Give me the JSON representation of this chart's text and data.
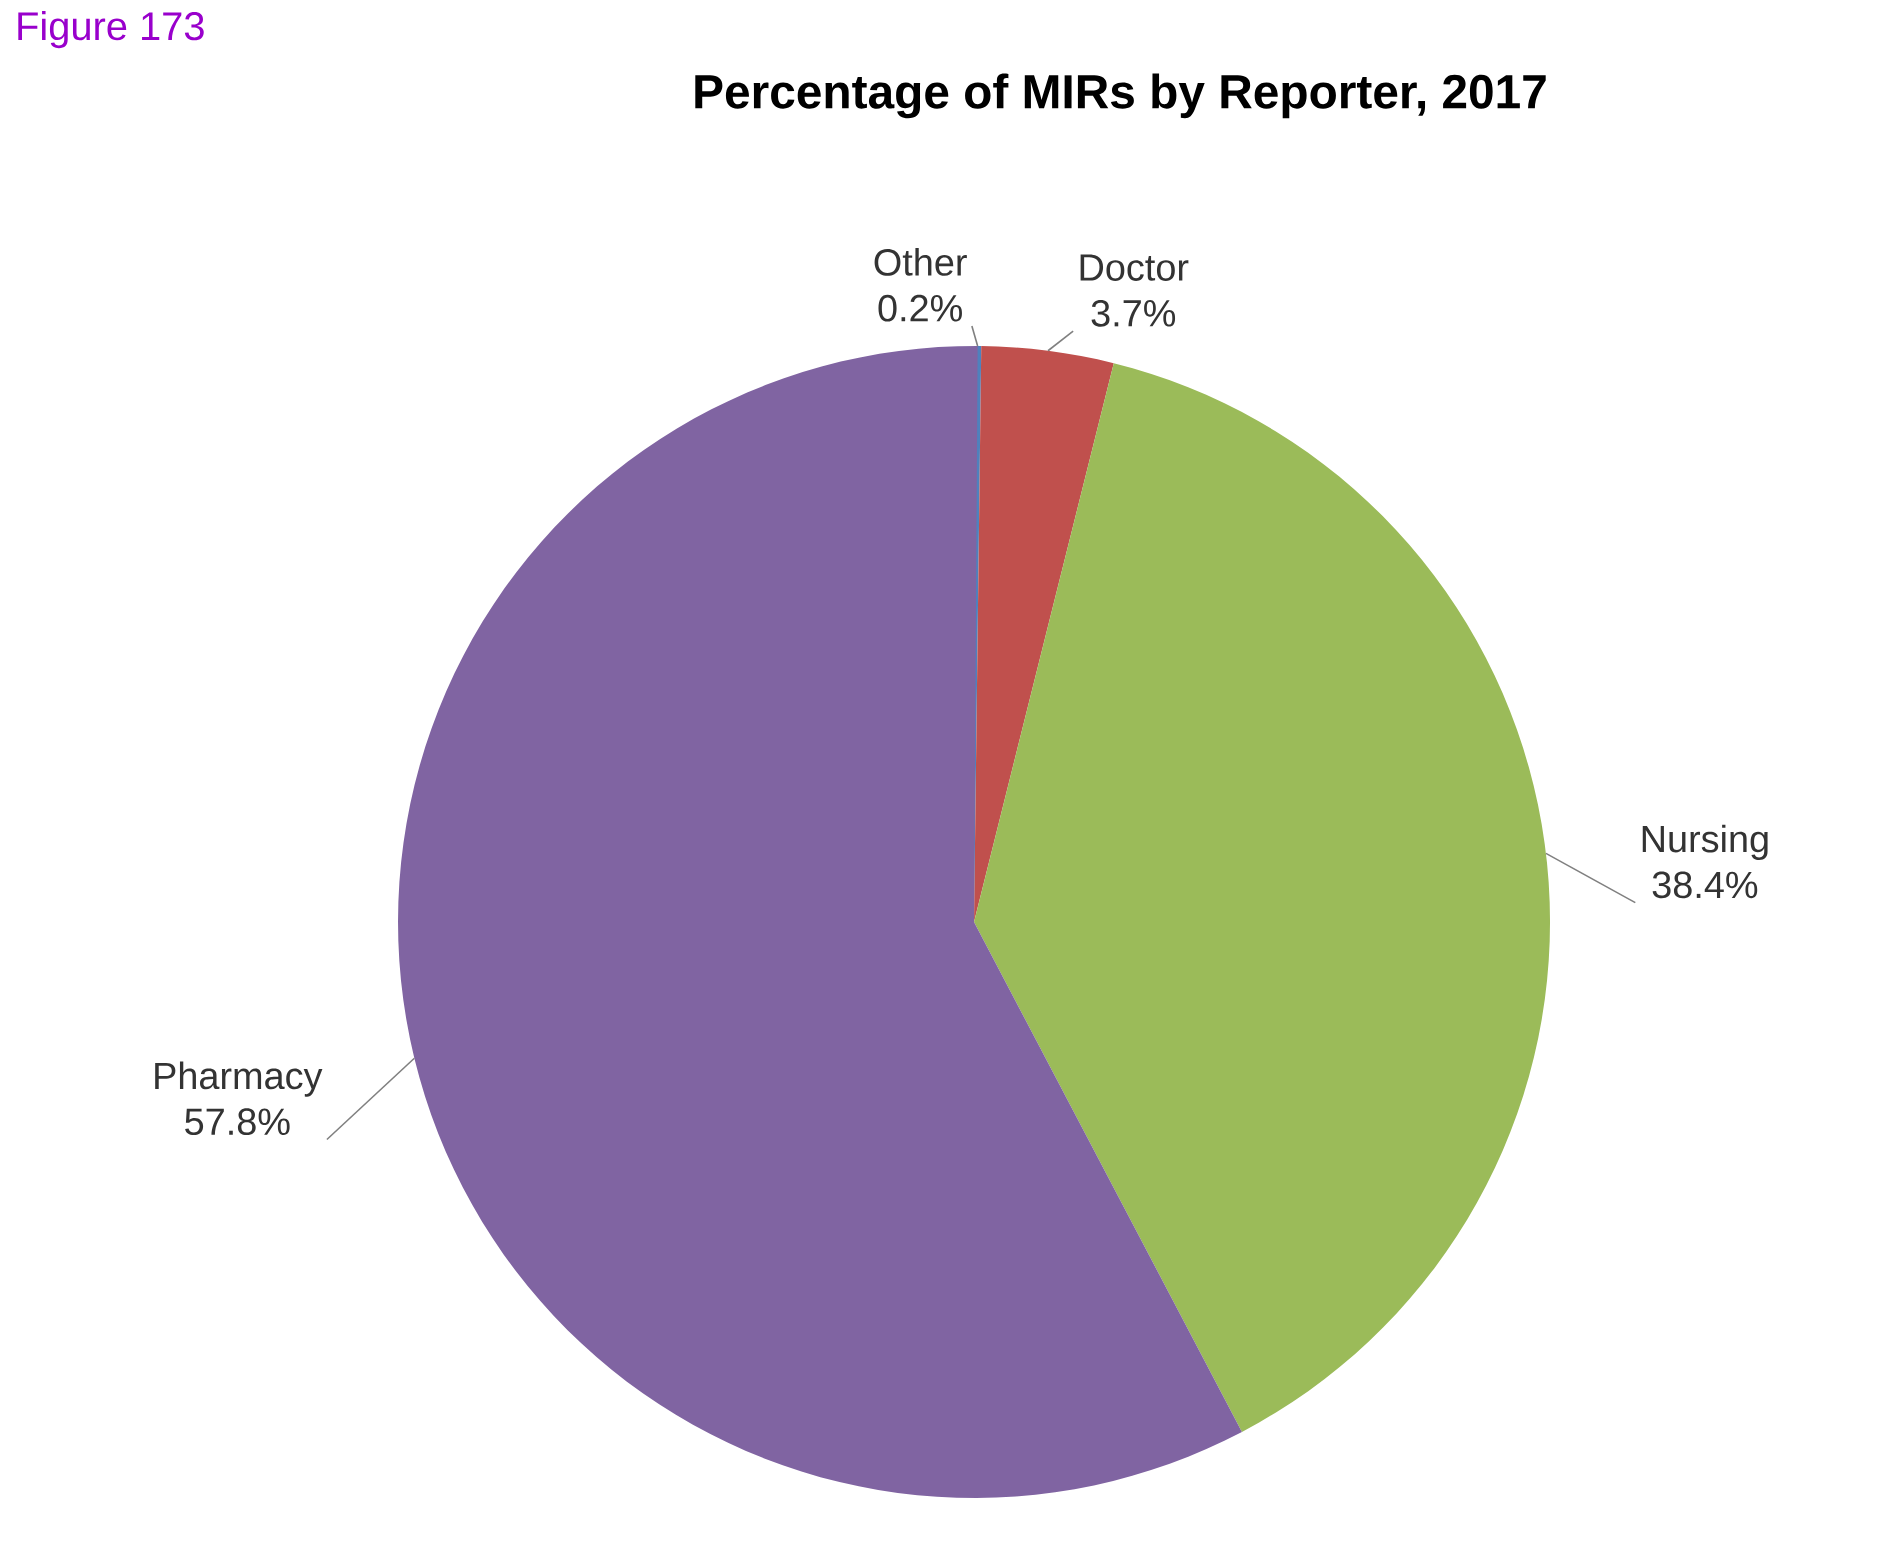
{
  "chart_data": {
    "type": "pie",
    "title": "Percentage of MIRs by Reporter, 2017",
    "categories": [
      "Other",
      "Doctor",
      "Nursing",
      "Pharmacy"
    ],
    "values": [
      0.2,
      3.7,
      38.4,
      57.8
    ],
    "value_labels": [
      "0.2%",
      "3.7%",
      "38.4%",
      "57.8%"
    ],
    "colors": [
      "#4f81bd",
      "#c0504d",
      "#9bbb59",
      "#8064a2"
    ],
    "annotations": [
      "Figure 173"
    ]
  }
}
